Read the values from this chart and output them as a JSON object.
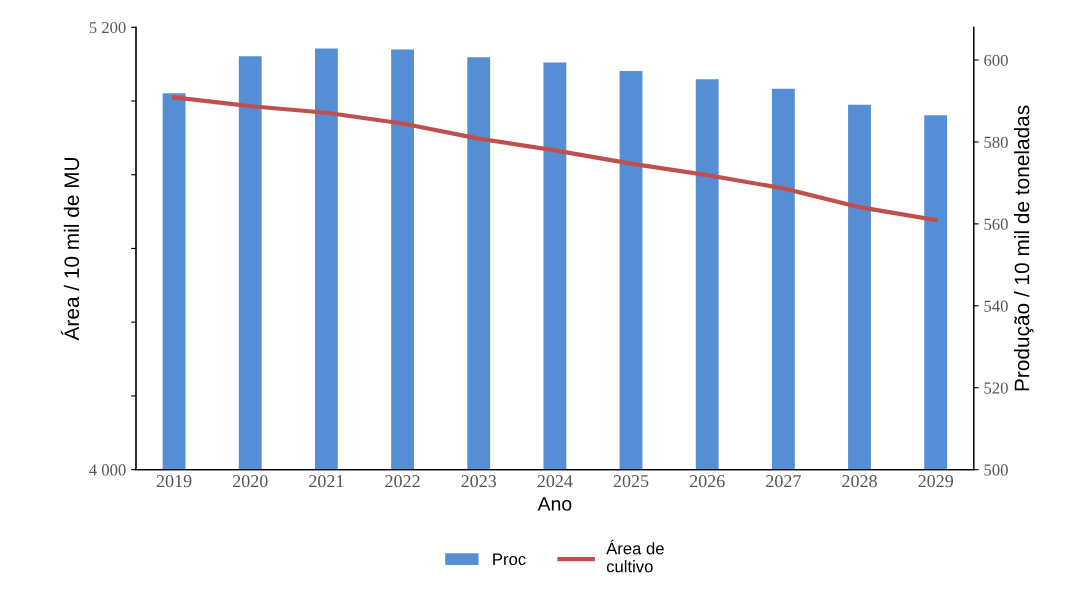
{
  "chart_data": {
    "type": "bar",
    "xlabel": "Ano",
    "ylabel": "Área / 10 mil de MU",
    "y2label": "Produção / 10 mil de toneladas",
    "categories": [
      "2019",
      "2020",
      "2021",
      "2022",
      "2023",
      "2024",
      "2025",
      "2026",
      "2027",
      "2028",
      "2029"
    ],
    "series": [
      {
        "name": "Proc",
        "axis": "y2",
        "color": "#558ed5",
        "values": [
          591.9,
          600.9,
          602.8,
          602.6,
          600.7,
          599.4,
          597.3,
          595.3,
          593.0,
          589.1,
          586.5
        ]
      },
      {
        "name": "Área de\ncultivo",
        "type": "line",
        "axis": "y",
        "color": "#c0504d",
        "values": [
          5010,
          4986,
          4968,
          4939,
          4898,
          4866,
          4830,
          4799,
          4763,
          4712,
          4677
        ]
      }
    ],
    "ylim": [
      4000,
      5200
    ],
    "yticks": [
      {
        "value": 4000,
        "label": "4 000"
      },
      {
        "value": 4200,
        "label": null
      },
      {
        "value": 4400,
        "label": null
      },
      {
        "value": 4600,
        "label": null
      },
      {
        "value": 4800,
        "label": null
      },
      {
        "value": 5000,
        "label": null
      },
      {
        "value": 5200,
        "label": "5 200"
      }
    ],
    "y2lim": [
      500,
      608
    ],
    "y2ticks": [
      500,
      520,
      540,
      560,
      580,
      600
    ],
    "grid": false,
    "legend": "bottom",
    "line_style": "solid",
    "marker": "none"
  }
}
